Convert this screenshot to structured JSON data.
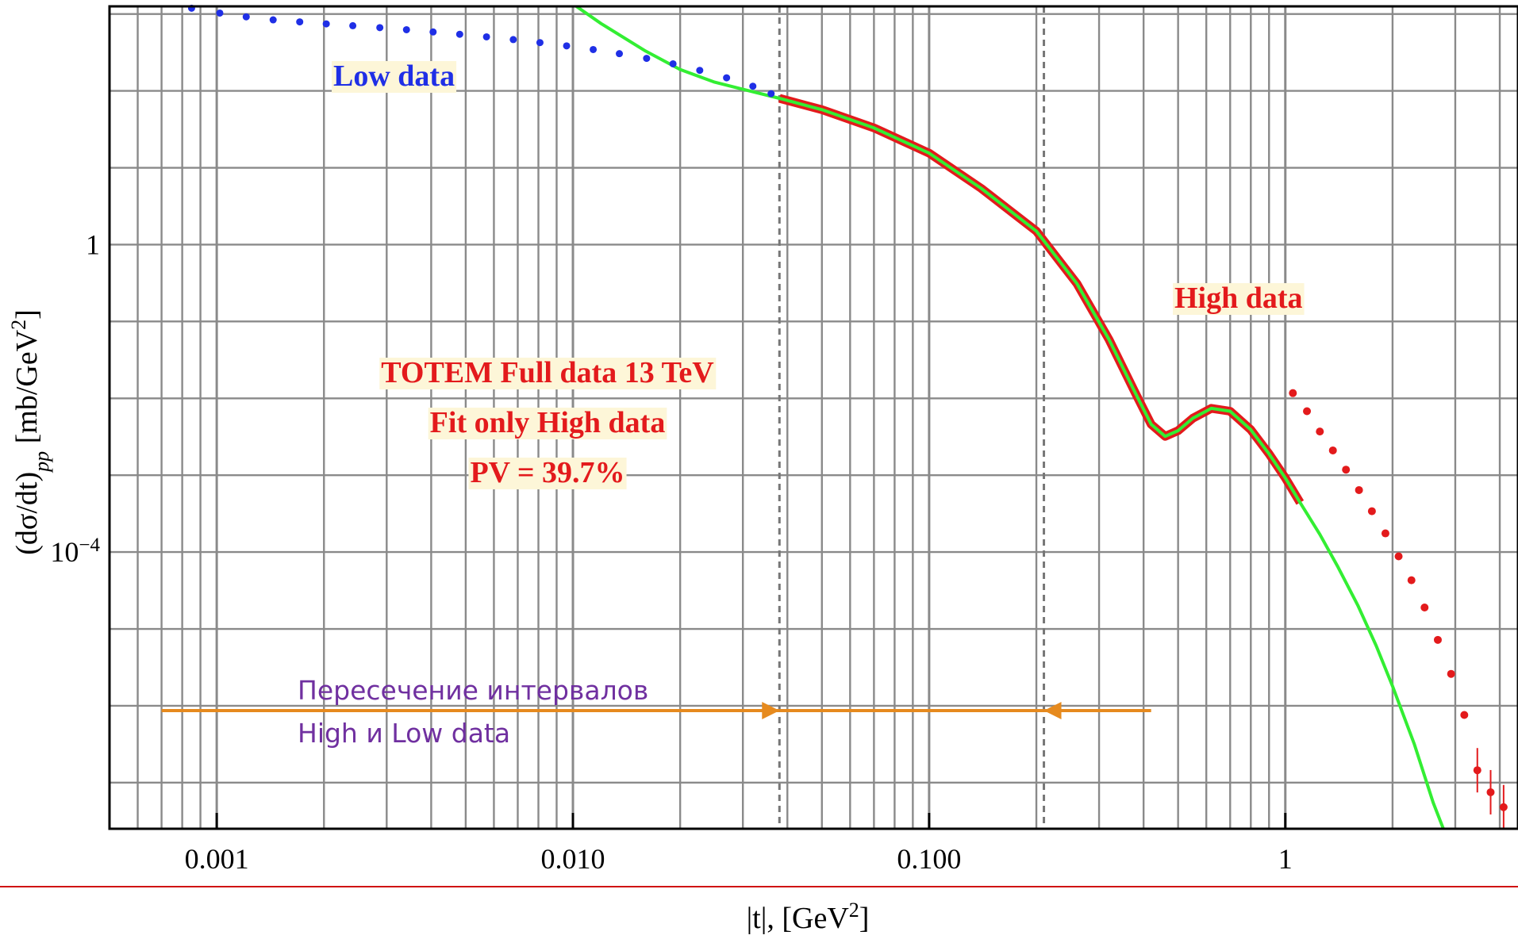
{
  "chart_data": {
    "type": "scatter",
    "xscale": "log",
    "yscale": "log",
    "xlabel": "|t|, [GeV",
    "xlabel_sup": "2",
    "xlabel_close": "]",
    "ylabel": "(dσ/dt)",
    "ylabel_sub": "pp",
    "ylabel_units": " [mb/GeV",
    "ylabel_sup": "2",
    "ylabel_close": "]",
    "xlim": [
      0.0005,
      4.5
    ],
    "ylim_exponent": [
      -7.6,
      3.1
    ],
    "x_ticks": [
      {
        "value": 0.001,
        "label": "0.001"
      },
      {
        "value": 0.01,
        "label": "0.010"
      },
      {
        "value": 0.1,
        "label": "0.100"
      },
      {
        "value": 1,
        "label": "1"
      }
    ],
    "y_ticks": [
      {
        "exp": 0,
        "label": "1"
      },
      {
        "exp": -4,
        "label": "10",
        "label_sup": "−4"
      }
    ],
    "grid": true,
    "vlines": [
      0.038,
      0.21
    ],
    "colors": {
      "low": "#1f2fe6",
      "high": "#e31a1c",
      "fit_outer": "#e31a1c",
      "fit_inner": "#33ee33",
      "arrow": "#e68a1e",
      "note": "#7030a0",
      "label_bg": "#fdf6d8",
      "rule": "#d01010"
    },
    "series": [
      {
        "name": "Low data",
        "role": "low",
        "x": [
          0.00085,
          0.00102,
          0.00121,
          0.00144,
          0.00171,
          0.00203,
          0.00241,
          0.00287,
          0.00341,
          0.00405,
          0.00481,
          0.00572,
          0.0068,
          0.00808,
          0.0096,
          0.0114,
          0.0135,
          0.0161,
          0.0191,
          0.0227,
          0.027,
          0.032,
          0.036
        ],
        "y": [
          1190,
          1030,
          920,
          840,
          790,
          745,
          705,
          665,
          625,
          585,
          545,
          505,
          465,
          425,
          385,
          345,
          305,
          265,
          225,
          185,
          148,
          115,
          92
        ]
      },
      {
        "name": "High data",
        "role": "high",
        "x": [
          1.05,
          1.15,
          1.25,
          1.36,
          1.48,
          1.61,
          1.75,
          1.91,
          2.08,
          2.26,
          2.46,
          2.68,
          2.92,
          3.18,
          3.46,
          3.77,
          4.1
        ],
        "y": [
          0.0117,
          0.0068,
          0.0037,
          0.0021,
          0.00118,
          0.00064,
          0.00034,
          0.000175,
          8.8e-05,
          4.3e-05,
          1.9e-05,
          7.2e-06,
          2.6e-06,
          7.6e-07,
          1.45e-07,
          7.5e-08,
          4.8e-08
        ]
      }
    ],
    "fit_curve": {
      "x": [
        0.0094,
        0.012,
        0.016,
        0.02,
        0.025,
        0.03,
        0.038,
        0.05,
        0.07,
        0.1,
        0.14,
        0.2,
        0.26,
        0.32,
        0.38,
        0.42,
        0.46,
        0.5,
        0.55,
        0.62,
        0.7,
        0.8,
        0.9,
        1.0,
        1.1,
        1.25,
        1.4,
        1.6,
        1.8,
        2.0,
        2.3,
        2.6,
        3.0,
        3.3,
        3.6,
        4.0,
        4.5
      ],
      "y": [
        1650,
        750,
        330,
        190,
        130,
        105,
        80,
        57,
        33,
        15.5,
        5.4,
        1.5,
        0.31,
        0.058,
        0.0115,
        0.0046,
        0.0032,
        0.0038,
        0.0055,
        0.0074,
        0.0068,
        0.0039,
        0.0019,
        0.00092,
        0.00044,
        0.00017,
        6.6e-05,
        2e-05,
        6e-06,
        1.8e-06,
        3.2e-07,
        5.5e-08,
        1e-08,
        3.2e-09,
        1.7e-09,
        1.2e-09,
        1e-09
      ]
    },
    "annotations": {
      "low_label": "Low data",
      "high_label": "High data",
      "info_lines": [
        "TOTEM Full data 13 TeV",
        "Fit only High data",
        "PV = 39.7%"
      ],
      "overlap_note_lines": [
        "Пересечение интервалов",
        "High и Low data"
      ]
    },
    "arrows": {
      "left_from": 0.0007,
      "left_to": 0.038,
      "right_from": 0.42,
      "right_to": 0.21
    }
  }
}
